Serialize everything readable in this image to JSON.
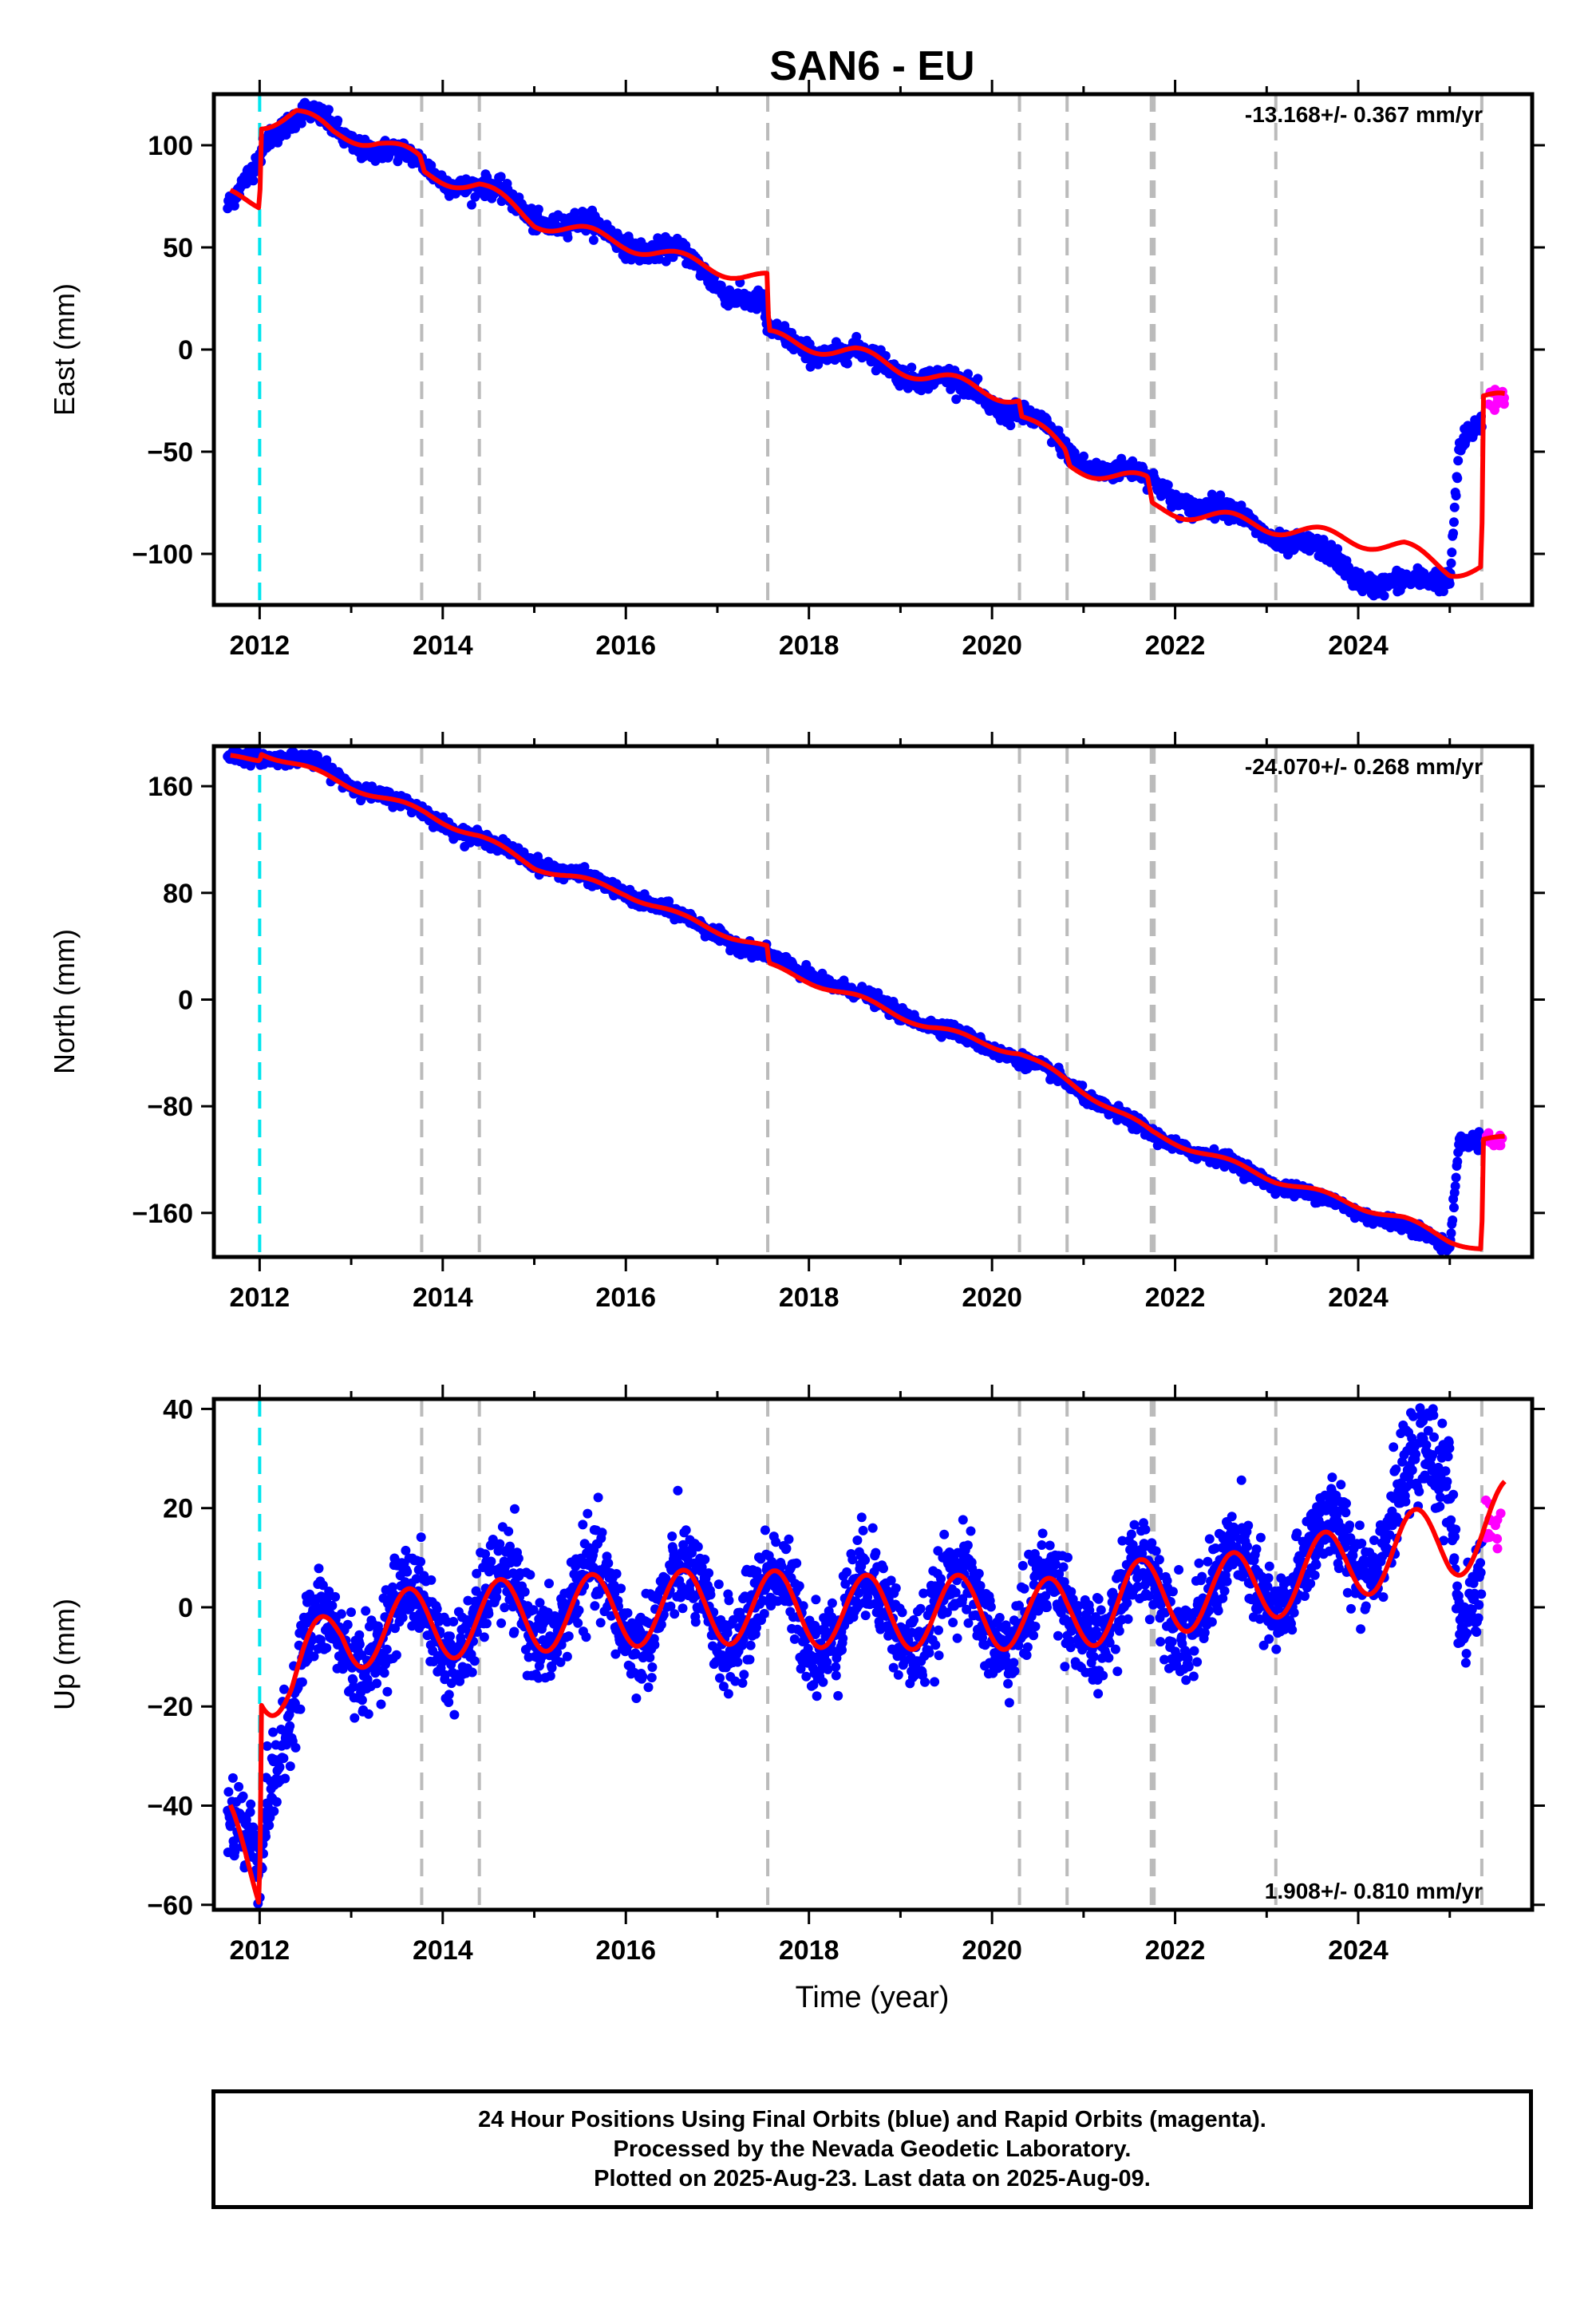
{
  "figure": {
    "title": "SAN6 - EU",
    "xlabel": "Time (year)"
  },
  "colors": {
    "final_orbits": "#0000ff",
    "rapid_orbits": "#ff00ff",
    "model": "#ff0000",
    "equipment_change": "#bbbbbb",
    "earthquake": "#00e5ee"
  },
  "chart_data": [
    {
      "type": "scatter",
      "name": "east",
      "ylabel": "East (mm)",
      "rate_text": "-13.168+/- 0.367 mm/yr",
      "xlim": [
        2011.5,
        2025.9
      ],
      "ylim": [
        -125,
        125
      ],
      "xticks": [
        2012,
        2014,
        2016,
        2018,
        2020,
        2022,
        2024
      ],
      "yticks": [
        100,
        50,
        0,
        -50,
        -100
      ],
      "ytick_labels": [
        "100",
        "50",
        "0",
        "−50",
        "−100"
      ],
      "trend": {
        "knots": [
          [
            2011.68,
            75
          ],
          [
            2012.0,
            72
          ],
          [
            2012.02,
            111
          ],
          [
            2012.4,
            116
          ],
          [
            2012.8,
            106
          ],
          [
            2013.3,
            102
          ],
          [
            2013.75,
            93
          ],
          [
            2013.8,
            86
          ],
          [
            2014.4,
            80
          ],
          [
            2015.0,
            63
          ],
          [
            2016.0,
            52
          ],
          [
            2016.6,
            44
          ],
          [
            2017.55,
            34
          ],
          [
            2017.56,
            6
          ],
          [
            2018.5,
            -2
          ],
          [
            2019.3,
            -13
          ],
          [
            2020.3,
            -24
          ],
          [
            2020.32,
            -32
          ],
          [
            2020.8,
            -50
          ],
          [
            2020.85,
            -57
          ],
          [
            2021.7,
            -65
          ],
          [
            2021.75,
            -77
          ],
          [
            2023.1,
            -87
          ],
          [
            2024.5,
            -97
          ],
          [
            2025.0,
            -108
          ],
          [
            2025.35,
            -106
          ],
          [
            2025.36,
            -23
          ],
          [
            2025.6,
            -25
          ]
        ],
        "amplitude": 3.5,
        "phase": 0.35
      },
      "final_orbits": {
        "knots": [
          [
            2011.65,
            66
          ],
          [
            2011.9,
            88
          ],
          [
            2012.1,
            108
          ],
          [
            2012.5,
            114
          ],
          [
            2013.0,
            104
          ],
          [
            2013.8,
            89
          ],
          [
            2014.4,
            79
          ],
          [
            2015.0,
            66
          ],
          [
            2016.0,
            54
          ],
          [
            2016.6,
            45
          ],
          [
            2017.5,
            20
          ],
          [
            2017.55,
            6
          ],
          [
            2018.5,
            -3
          ],
          [
            2019.3,
            -13
          ],
          [
            2020.3,
            -30
          ],
          [
            2020.8,
            -50
          ],
          [
            2021.7,
            -65
          ],
          [
            2022.5,
            -80
          ],
          [
            2023.1,
            -90
          ],
          [
            2024.0,
            -110
          ],
          [
            2024.6,
            -117
          ],
          [
            2025.0,
            -110
          ],
          [
            2025.1,
            -45
          ],
          [
            2025.2,
            -38
          ],
          [
            2025.35,
            -35
          ]
        ],
        "noise": 2.5,
        "amplitude": 4,
        "phase": 0.35,
        "count": 1800
      },
      "rapid_orbits": {
        "x_range": [
          2025.35,
          2025.6
        ],
        "y_range": [
          -30,
          -18
        ],
        "count": 14
      },
      "equipment_changes": [
        2013.77,
        2014.4,
        2017.55,
        2020.3,
        2020.82,
        2021.74,
        2021.77,
        2023.1,
        2025.35
      ],
      "earthquakes": [
        2012.0
      ]
    },
    {
      "type": "scatter",
      "name": "north",
      "ylabel": "North (mm)",
      "rate_text": "-24.070+/- 0.268 mm/yr",
      "xlim": [
        2011.5,
        2025.9
      ],
      "ylim": [
        -193,
        190
      ],
      "xticks": [
        2012,
        2014,
        2016,
        2018,
        2020,
        2022,
        2024
      ],
      "yticks": [
        160,
        80,
        0,
        -80,
        -160
      ],
      "ytick_labels": [
        "160",
        "80",
        "0",
        "−80",
        "−160"
      ],
      "trend": {
        "knots": [
          [
            2011.68,
            181
          ],
          [
            2012.0,
            181
          ],
          [
            2012.02,
            186
          ],
          [
            2013.0,
            160
          ],
          [
            2013.8,
            140
          ],
          [
            2014.4,
            122
          ],
          [
            2015.0,
            100
          ],
          [
            2016.0,
            80
          ],
          [
            2016.6,
            62
          ],
          [
            2017.55,
            38
          ],
          [
            2017.56,
            25
          ],
          [
            2018.5,
            2
          ],
          [
            2019.3,
            -20
          ],
          [
            2020.3,
            -40
          ],
          [
            2020.8,
            -60
          ],
          [
            2021.75,
            -100
          ],
          [
            2022.5,
            -120
          ],
          [
            2023.1,
            -135
          ],
          [
            2024.5,
            -165
          ],
          [
            2025.0,
            -180
          ],
          [
            2025.35,
            -187
          ],
          [
            2025.36,
            -105
          ],
          [
            2025.6,
            -105
          ]
        ],
        "amplitude": 2.5,
        "phase": 0.35
      },
      "final_orbits": {
        "knots": [
          [
            2011.65,
            181
          ],
          [
            2012.0,
            183
          ],
          [
            2012.5,
            180
          ],
          [
            2013.0,
            162
          ],
          [
            2013.8,
            140
          ],
          [
            2014.4,
            120
          ],
          [
            2015.0,
            104
          ],
          [
            2016.0,
            80
          ],
          [
            2016.6,
            62
          ],
          [
            2017.55,
            32
          ],
          [
            2018.5,
            5
          ],
          [
            2019.3,
            -18
          ],
          [
            2020.3,
            -44
          ],
          [
            2020.8,
            -62
          ],
          [
            2021.75,
            -102
          ],
          [
            2022.5,
            -120
          ],
          [
            2023.1,
            -138
          ],
          [
            2024.5,
            -170
          ],
          [
            2025.0,
            -185
          ],
          [
            2025.1,
            -105
          ],
          [
            2025.35,
            -104
          ]
        ],
        "noise": 2.5,
        "amplitude": 2,
        "phase": 0.35,
        "count": 1800
      },
      "rapid_orbits": {
        "x_range": [
          2025.35,
          2025.6
        ],
        "y_range": [
          -110,
          -100
        ],
        "count": 14
      },
      "equipment_changes": [
        2013.77,
        2014.4,
        2017.55,
        2020.3,
        2020.82,
        2021.74,
        2021.77,
        2023.1,
        2025.35
      ],
      "earthquakes": [
        2012.0
      ]
    },
    {
      "type": "scatter",
      "name": "up",
      "ylabel": "Up (mm)",
      "rate_text": "1.908+/- 0.810 mm/yr",
      "xlim": [
        2011.5,
        2025.9
      ],
      "ylim": [
        -61,
        42
      ],
      "xticks": [
        2012,
        2014,
        2016,
        2018,
        2020,
        2022,
        2024
      ],
      "yticks": [
        40,
        20,
        0,
        -20,
        -40,
        -60
      ],
      "ytick_labels": [
        "40",
        "20",
        "0",
        "−20",
        "−40",
        "−60"
      ],
      "trend": {
        "knots": [
          [
            2011.68,
            -47
          ],
          [
            2012.0,
            -55
          ],
          [
            2012.02,
            -14
          ],
          [
            2012.35,
            -15
          ],
          [
            2012.9,
            -5
          ],
          [
            2013.5,
            -4
          ],
          [
            2014.5,
            -2
          ],
          [
            2015.5,
            -1
          ],
          [
            2016.5,
            0
          ],
          [
            2017.5,
            0
          ],
          [
            2018.5,
            -1
          ],
          [
            2019.5,
            -1
          ],
          [
            2020.3,
            -1
          ],
          [
            2020.82,
            -2
          ],
          [
            2021.5,
            2
          ],
          [
            2022.5,
            3
          ],
          [
            2023.5,
            7
          ],
          [
            2024.5,
            12
          ],
          [
            2025.0,
            13
          ],
          [
            2025.6,
            18
          ]
        ],
        "amplitude": 7.5,
        "phase": 0.38
      },
      "final_orbits": {
        "knots": [
          [
            2011.65,
            -50
          ],
          [
            2012.0,
            -45
          ],
          [
            2012.1,
            -30
          ],
          [
            2012.5,
            -12
          ],
          [
            2013.0,
            -5
          ],
          [
            2014.0,
            -3
          ],
          [
            2015.0,
            0
          ],
          [
            2016.0,
            0
          ],
          [
            2017.0,
            0
          ],
          [
            2018.0,
            -1
          ],
          [
            2019.0,
            -1
          ],
          [
            2020.3,
            -1
          ],
          [
            2020.82,
            -2
          ],
          [
            2021.5,
            1
          ],
          [
            2022.5,
            3
          ],
          [
            2023.5,
            8
          ],
          [
            2024.5,
            20
          ],
          [
            2025.0,
            30
          ],
          [
            2025.1,
            5
          ],
          [
            2025.35,
            8
          ]
        ],
        "noise": 4.5,
        "amplitude": 8,
        "phase": 0.38,
        "count": 2600
      },
      "rapid_orbits": {
        "x_range": [
          2025.35,
          2025.6
        ],
        "y_range": [
          11,
          23
        ],
        "count": 14
      },
      "equipment_changes": [
        2013.77,
        2014.4,
        2017.55,
        2020.3,
        2020.82,
        2021.74,
        2021.77,
        2023.1,
        2025.35
      ],
      "earthquakes": [
        2012.0
      ]
    }
  ],
  "footer": {
    "line1": "24 Hour Positions Using Final Orbits (blue) and Rapid Orbits (magenta).",
    "line2": "Processed by the Nevada Geodetic Laboratory.",
    "line3": "Plotted on 2025-Aug-23. Last data on 2025-Aug-09."
  }
}
